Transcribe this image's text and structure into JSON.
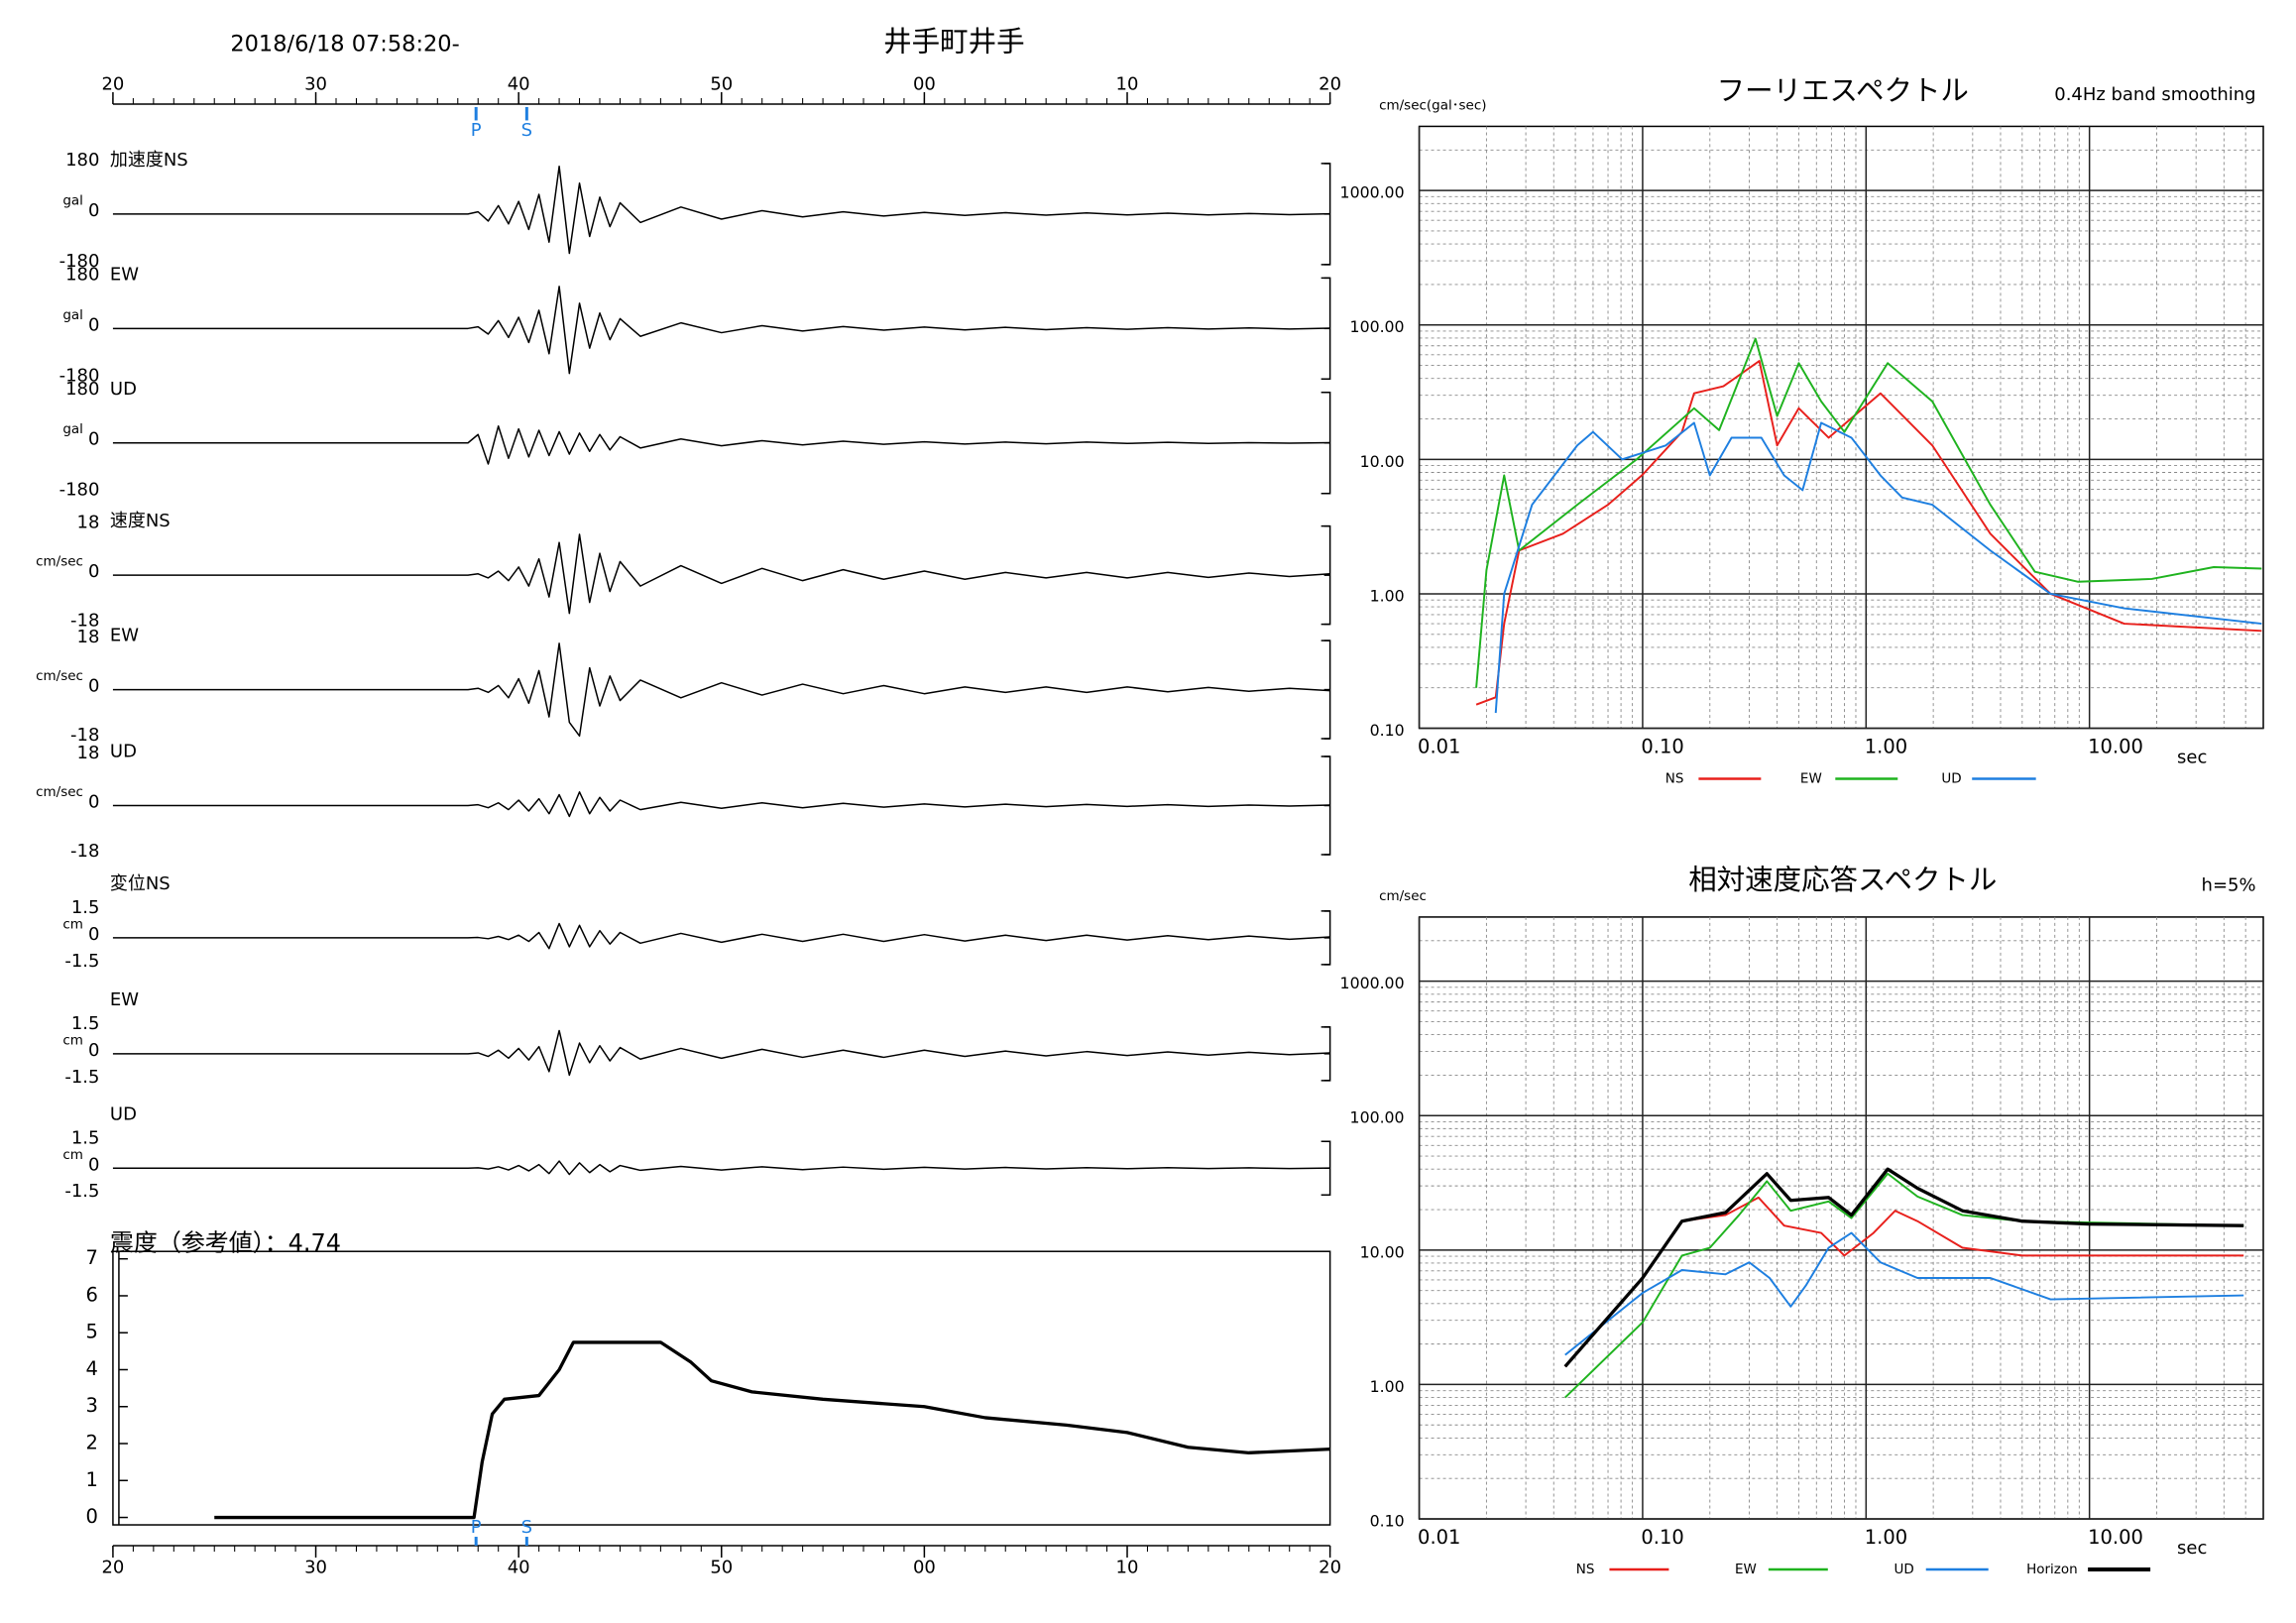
{
  "header": {
    "datetime": "2018/6/18 07:58:20-",
    "station": "井手町井手"
  },
  "chart_data": [
    {
      "type": "waveform",
      "xlim": [
        0,
        60
      ],
      "xticks": [
        {
          "value": 0,
          "label": "20"
        },
        {
          "value": 10,
          "label": "30"
        },
        {
          "value": 20,
          "label": "40"
        },
        {
          "value": 30,
          "label": "50"
        },
        {
          "value": 40,
          "label": "00"
        },
        {
          "value": 50,
          "label": "10"
        },
        {
          "value": 60,
          "label": "20"
        }
      ],
      "phases": [
        {
          "label": "P",
          "value": 17.9
        },
        {
          "label": "S",
          "value": 20.4
        }
      ],
      "x": [
        0,
        5,
        10,
        15,
        17,
        17.5,
        18,
        18.5,
        19,
        19.5,
        20,
        20.5,
        21,
        21.5,
        22,
        22.5,
        23,
        23.5,
        24,
        24.5,
        25,
        26,
        28,
        30,
        32,
        34,
        36,
        38,
        40,
        42,
        44,
        46,
        48,
        50,
        52,
        54,
        56,
        58,
        60
      ],
      "panels": [
        {
          "name": "加速度NS",
          "unit": "gal",
          "ylim": [
            -180,
            180
          ],
          "yticks": [
            -180,
            0,
            180
          ],
          "color": "#000000",
          "values": [
            0,
            0,
            0,
            0,
            0,
            0,
            8,
            -25,
            30,
            -35,
            45,
            -55,
            70,
            -100,
            170,
            -140,
            110,
            -80,
            60,
            -45,
            40,
            -30,
            25,
            -18,
            12,
            -10,
            8,
            -7,
            6,
            -5,
            5,
            -4,
            4,
            -3,
            3,
            -3,
            2,
            -2,
            1
          ]
        },
        {
          "name": "EW",
          "unit": "gal",
          "ylim": [
            -180,
            180
          ],
          "yticks": [
            -180,
            0,
            180
          ],
          "color": "#000000",
          "values": [
            0,
            0,
            0,
            0,
            0,
            0,
            6,
            -20,
            28,
            -32,
            40,
            -50,
            65,
            -90,
            150,
            -160,
            90,
            -70,
            55,
            -40,
            35,
            -28,
            20,
            -15,
            10,
            -9,
            7,
            -6,
            5,
            -5,
            4,
            -4,
            3,
            -3,
            3,
            -2,
            2,
            -2,
            1
          ]
        },
        {
          "name": "UD",
          "unit": "gal",
          "ylim": [
            -180,
            180
          ],
          "yticks": [
            -180,
            0,
            180
          ],
          "color": "#000000",
          "values": [
            0,
            0,
            0,
            0,
            0,
            0,
            30,
            -75,
            60,
            -55,
            50,
            -50,
            45,
            -45,
            40,
            -40,
            35,
            -30,
            30,
            -25,
            22,
            -18,
            14,
            -10,
            8,
            -7,
            6,
            -5,
            4,
            -4,
            3,
            -3,
            3,
            -2,
            2,
            -2,
            1,
            -1,
            1
          ]
        },
        {
          "name": "速度NS",
          "unit": "cm/sec",
          "ylim": [
            -18,
            18
          ],
          "yticks": [
            -18,
            0,
            18
          ],
          "color": "#000000",
          "values": [
            0,
            0,
            0,
            0,
            0,
            0,
            0.5,
            -1,
            1.5,
            -2,
            3,
            -4,
            6,
            -8,
            12,
            -14,
            15,
            -10,
            8,
            -6,
            5,
            -4,
            3.5,
            -3,
            2.5,
            -2,
            2,
            -1.5,
            1.5,
            -1.5,
            1,
            -1,
            1,
            -1,
            1,
            -0.8,
            0.8,
            -0.5,
            0.5
          ]
        },
        {
          "name": "EW",
          "unit": "cm/sec",
          "ylim": [
            -18,
            18
          ],
          "yticks": [
            -18,
            0,
            18
          ],
          "color": "#000000",
          "values": [
            0,
            0,
            0,
            0,
            0,
            0,
            0.5,
            -1,
            1.5,
            -3,
            4,
            -5,
            7,
            -10,
            17,
            -12,
            -17,
            8,
            -6,
            5,
            -4,
            3.5,
            -3,
            2.5,
            -2,
            2,
            -1.5,
            1.5,
            -1.5,
            1,
            -1,
            1,
            -1,
            1,
            -0.8,
            0.8,
            -0.6,
            0.5,
            -0.4
          ]
        },
        {
          "name": "UD",
          "unit": "cm/sec",
          "ylim": [
            -18,
            18
          ],
          "yticks": [
            -18,
            0,
            18
          ],
          "color": "#000000",
          "values": [
            0,
            0,
            0,
            0,
            0,
            0,
            0.3,
            -0.8,
            1,
            -1.5,
            2,
            -2,
            2.5,
            -3,
            4,
            -4,
            5,
            -3,
            3,
            -2,
            2,
            -1.5,
            1.2,
            -1,
            1,
            -0.8,
            0.8,
            -0.6,
            0.6,
            -0.5,
            0.5,
            -0.4,
            0.4,
            -0.3,
            0.3,
            -0.3,
            0.2,
            -0.2,
            0.2
          ]
        },
        {
          "name": "変位NS",
          "unit": "cm",
          "ylim": [
            -1.5,
            1.5
          ],
          "yticks": [
            -1.5,
            0,
            1.5
          ],
          "color": "#000000",
          "values": [
            0,
            0,
            0,
            0,
            0,
            0,
            0.02,
            -0.05,
            0.08,
            -0.1,
            0.15,
            -0.2,
            0.3,
            -0.6,
            0.8,
            -0.5,
            0.7,
            -0.5,
            0.4,
            -0.35,
            0.3,
            -0.3,
            0.25,
            -0.25,
            0.2,
            -0.2,
            0.2,
            -0.2,
            0.18,
            -0.18,
            0.15,
            -0.15,
            0.15,
            -0.12,
            0.12,
            -0.1,
            0.1,
            -0.08,
            0.05
          ]
        },
        {
          "name": "EW",
          "unit": "cm",
          "ylim": [
            -1.5,
            1.5
          ],
          "yticks": [
            -1.5,
            0,
            1.5
          ],
          "color": "#000000",
          "values": [
            0,
            0,
            0,
            0,
            0,
            0,
            0.05,
            -0.15,
            0.2,
            -0.25,
            0.3,
            -0.35,
            0.4,
            -1.0,
            1.3,
            -1.2,
            0.6,
            -0.5,
            0.45,
            -0.4,
            0.35,
            -0.3,
            0.3,
            -0.25,
            0.25,
            -0.2,
            0.2,
            -0.2,
            0.2,
            -0.15,
            0.15,
            -0.12,
            0.12,
            -0.1,
            0.1,
            -0.08,
            0.08,
            -0.05,
            0.05
          ]
        },
        {
          "name": "UD",
          "unit": "cm",
          "ylim": [
            -1.5,
            1.5
          ],
          "yticks": [
            -1.5,
            0,
            1.5
          ],
          "color": "#000000",
          "values": [
            0,
            0,
            0,
            0,
            0,
            0,
            0.02,
            -0.05,
            0.08,
            -0.1,
            0.15,
            -0.15,
            0.2,
            -0.3,
            0.4,
            -0.35,
            0.3,
            -0.25,
            0.2,
            -0.2,
            0.15,
            -0.12,
            0.1,
            -0.1,
            0.08,
            -0.08,
            0.06,
            -0.06,
            0.05,
            -0.05,
            0.04,
            -0.04,
            0.03,
            -0.03,
            0.03,
            -0.02,
            0.02,
            -0.02,
            0.01
          ]
        }
      ]
    },
    {
      "type": "line",
      "title": "震度（参考値）：4.74",
      "xlim": [
        0,
        60
      ],
      "xticks": [
        {
          "value": 0,
          "label": "20"
        },
        {
          "value": 10,
          "label": "30"
        },
        {
          "value": 20,
          "label": "40"
        },
        {
          "value": 30,
          "label": "50"
        },
        {
          "value": 40,
          "label": "00"
        },
        {
          "value": 50,
          "label": "10"
        },
        {
          "value": 60,
          "label": "20"
        }
      ],
      "ylim": [
        0,
        7
      ],
      "yticks": [
        0,
        1,
        2,
        3,
        4,
        5,
        6,
        7
      ],
      "phases": [
        {
          "label": "P",
          "value": 17.9
        },
        {
          "label": "S",
          "value": 20.4
        }
      ],
      "color": "#000000",
      "x": [
        5,
        17.8,
        18.2,
        18.7,
        19.3,
        21.0,
        22.0,
        22.7,
        27.0,
        28.5,
        29.5,
        31.5,
        35,
        40,
        43,
        47,
        50,
        53,
        56,
        58,
        60
      ],
      "values": [
        0,
        0,
        1.5,
        2.8,
        3.2,
        3.3,
        4.0,
        4.74,
        4.74,
        4.2,
        3.7,
        3.4,
        3.2,
        3.0,
        2.7,
        2.5,
        2.3,
        1.9,
        1.75,
        1.8,
        1.85
      ]
    },
    {
      "type": "line",
      "title": "フーリエスペクトル",
      "subtitle": "0.4Hz band smoothing",
      "ylabel": "cm/sec(gal･sec)",
      "xlabel": "sec",
      "xscale": "log",
      "yscale": "log",
      "grid": true,
      "xlim": [
        0.01,
        60
      ],
      "xticks": [
        0.01,
        {
          "value": 0.1,
          "label": "0.10"
        },
        {
          "value": 1,
          "label": "1.00"
        },
        {
          "value": 10,
          "label": "10.00"
        }
      ],
      "ylim": [
        0.1,
        3000
      ],
      "yticks": [
        {
          "value": 0.1,
          "label": "0.10"
        },
        {
          "value": 1,
          "label": "1.00"
        },
        {
          "value": 10,
          "label": "10.00"
        },
        {
          "value": 100,
          "label": "100.00"
        },
        {
          "value": 1000,
          "label": "1000.00"
        }
      ],
      "series": [
        {
          "name": "NS",
          "color": "#e8201c",
          "x": [
            0.018,
            0.022,
            0.024,
            0.028,
            0.044,
            0.07,
            0.1,
            0.15,
            0.17,
            0.23,
            0.333,
            0.4,
            0.5,
            0.68,
            1.16,
            1.98,
            3.6,
            6.7,
            14.3,
            59
          ],
          "values": [
            0.15,
            0.17,
            0.6,
            2.1,
            2.8,
            4.6,
            7.7,
            16,
            31,
            35,
            54,
            12.7,
            24,
            14.5,
            31,
            12.7,
            2.8,
            1.0,
            0.6,
            0.53
          ]
        },
        {
          "name": "EW",
          "color": "#1fb31f",
          "x": [
            0.018,
            0.02,
            0.024,
            0.028,
            0.051,
            0.094,
            0.17,
            0.22,
            0.32,
            0.4,
            0.5,
            0.63,
            0.8,
            1.25,
            1.98,
            3.6,
            5.7,
            8.9,
            19,
            36,
            59
          ],
          "values": [
            0.2,
            1.5,
            7.6,
            2.1,
            4.6,
            10,
            24,
            16.5,
            79,
            21,
            52,
            27,
            16,
            52,
            27,
            4.6,
            1.46,
            1.23,
            1.29,
            1.58,
            1.54
          ]
        },
        {
          "name": "UD",
          "color": "#1e7fe0",
          "x": [
            0.022,
            0.024,
            0.032,
            0.051,
            0.06,
            0.081,
            0.127,
            0.17,
            0.2,
            0.25,
            0.34,
            0.43,
            0.52,
            0.63,
            0.86,
            1.16,
            1.45,
            1.98,
            3.6,
            6.7,
            14.3,
            59
          ],
          "values": [
            0.13,
            1,
            4.6,
            12.7,
            16,
            10,
            12.7,
            18.7,
            7.6,
            14.5,
            14.5,
            7.6,
            5.9,
            18.7,
            14.5,
            7.6,
            5.2,
            4.6,
            2.1,
            1,
            0.78,
            0.6
          ]
        }
      ]
    },
    {
      "type": "line",
      "title": "相対速度応答スペクトル",
      "subtitle": "h=5%",
      "ylabel": "cm/sec",
      "xlabel": "sec",
      "xscale": "log",
      "yscale": "log",
      "grid": true,
      "xlim": [
        0.01,
        60
      ],
      "xticks": [
        0.01,
        {
          "value": 0.1,
          "label": "0.10"
        },
        {
          "value": 1,
          "label": "1.00"
        },
        {
          "value": 10,
          "label": "10.00"
        }
      ],
      "ylim": [
        0.1,
        3000
      ],
      "yticks": [
        {
          "value": 0.1,
          "label": "0.10"
        },
        {
          "value": 1,
          "label": "1.00"
        },
        {
          "value": 10,
          "label": "10.00"
        },
        {
          "value": 100,
          "label": "100.00"
        },
        {
          "value": 1000,
          "label": "1000.00"
        }
      ],
      "series": [
        {
          "name": "NS",
          "color": "#e8201c",
          "x": [
            0.045,
            0.1,
            0.15,
            0.235,
            0.33,
            0.43,
            0.63,
            0.8,
            1.08,
            1.35,
            1.7,
            2.7,
            5,
            49
          ],
          "values": [
            1.36,
            6.2,
            16.4,
            18.2,
            24.6,
            15.2,
            13.4,
            9.1,
            13.4,
            19.6,
            16.4,
            10.4,
            9.1,
            9.1
          ]
        },
        {
          "name": "EW",
          "color": "#1fb31f",
          "x": [
            0.045,
            0.1,
            0.15,
            0.2,
            0.27,
            0.36,
            0.46,
            0.68,
            0.86,
            1.25,
            1.7,
            2.7,
            5,
            49
          ],
          "values": [
            0.8,
            2.9,
            9.1,
            10.4,
            18.2,
            32.5,
            19.6,
            23,
            17.3,
            37,
            25,
            18.2,
            16.4,
            15.2
          ]
        },
        {
          "name": "UD",
          "color": "#1e7fe0",
          "x": [
            0.045,
            0.1,
            0.15,
            0.235,
            0.3,
            0.37,
            0.46,
            0.54,
            0.68,
            0.86,
            1.16,
            1.7,
            3.6,
            6.7,
            49
          ],
          "values": [
            1.66,
            4.8,
            7.1,
            6.6,
            8.1,
            6.2,
            3.8,
            5.5,
            10.4,
            13.4,
            8.1,
            6.2,
            6.2,
            4.3,
            4.6
          ]
        },
        {
          "name": "Horizon",
          "color": "#000000",
          "x": [
            0.045,
            0.1,
            0.15,
            0.235,
            0.36,
            0.46,
            0.68,
            0.86,
            1.25,
            1.7,
            2.7,
            5,
            10,
            49
          ],
          "values": [
            1.36,
            6.2,
            16.4,
            19,
            37,
            23.4,
            24.6,
            18.2,
            40,
            28.8,
            19.6,
            16.4,
            15.6,
            15.2
          ]
        }
      ]
    }
  ]
}
